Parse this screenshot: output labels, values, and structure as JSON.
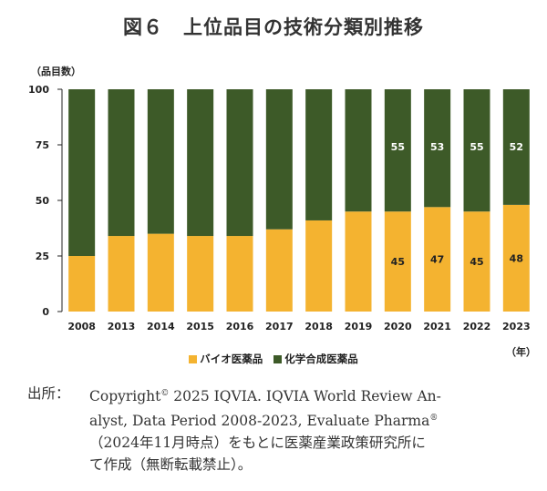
{
  "title": "図６　上位品目の技術分類別推移",
  "colors": {
    "bio": "#f4b330",
    "chem": "#3d5a28",
    "axis": "#222222",
    "text_on_dark": "#ffffff"
  },
  "chart_data": {
    "type": "bar",
    "stacked": true,
    "categories": [
      "2008",
      "2013",
      "2014",
      "2015",
      "2016",
      "2017",
      "2018",
      "2019",
      "2020",
      "2021",
      "2022",
      "2023"
    ],
    "series": [
      {
        "name": "バイオ医薬品",
        "values": [
          25,
          34,
          35,
          34,
          34,
          37,
          41,
          45,
          45,
          47,
          45,
          48
        ]
      },
      {
        "name": "化学合成医薬品",
        "values": [
          75,
          66,
          65,
          66,
          66,
          63,
          59,
          55,
          55,
          53,
          55,
          52
        ]
      }
    ],
    "data_labels": {
      "bio": [
        "",
        "",
        "",
        "",
        "",
        "",
        "",
        "",
        "45",
        "47",
        "45",
        "48"
      ],
      "chem": [
        "",
        "",
        "",
        "",
        "",
        "",
        "",
        "",
        "55",
        "53",
        "55",
        "52"
      ]
    },
    "ylabel": "（品目数）",
    "xunit": "（年）",
    "ylim": [
      0,
      100
    ],
    "yticks": [
      0,
      25,
      50,
      75,
      100
    ],
    "legend_position": "bottom"
  },
  "source": {
    "head": "出所：",
    "line1_before": "Copyright",
    "line1_sup": "©",
    "line1_after": " 2025 IQVIA. IQVIA World Review An-",
    "line2_before": "alyst, Data Period 2008-2023, Evaluate Pharma",
    "line2_sup": "®",
    "line3": "（2024年11月時点）をもとに医薬産業政策研究所に",
    "line4": "て作成（無断転載禁止）。"
  }
}
